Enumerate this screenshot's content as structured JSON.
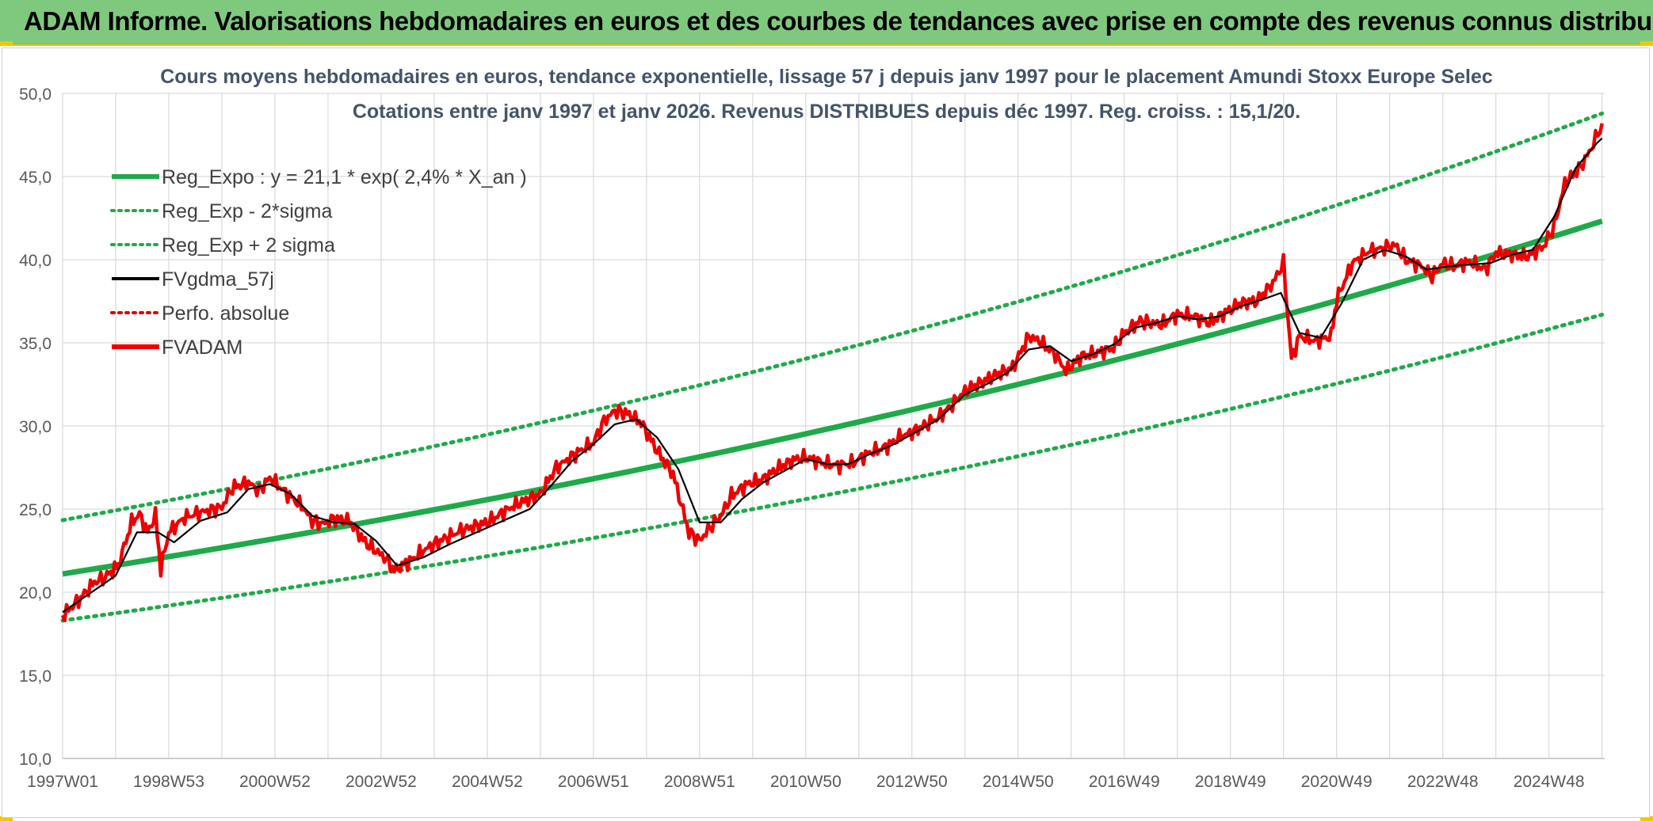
{
  "header": {
    "title": "ADAM Informe. Valorisations hebdomadaires en euros et des courbes de tendances avec prise en compte des revenus connus distribués"
  },
  "colors": {
    "header_bg": "#7fc97f",
    "regression": "#1faa4a",
    "sigma_band": "#1faa4a",
    "smoothed": "#000000",
    "perf_absolue": "#e00000",
    "fvadam": "#ee0000",
    "grid": "#d9d9d9"
  },
  "chart_data": {
    "type": "line",
    "title": "Cours moyens hebdomadaires en euros, tendance exponentielle, lissage 57 j depuis janv 1997 pour le placement Amundi Stoxx Europe Selec",
    "subtitle": "Cotations entre janv 1997 et janv 2026. Revenus DISTRIBUES depuis déc 1997. Reg. croiss. : 15,1/20.",
    "xlabel": "",
    "ylabel": "",
    "x_range": [
      1997.0,
      2026.05
    ],
    "ylim": [
      10,
      50
    ],
    "y_ticks": [
      "10,0",
      "15,0",
      "20,0",
      "25,0",
      "30,0",
      "35,0",
      "40,0",
      "45,0",
      "50,0"
    ],
    "y_tick_values": [
      10,
      15,
      20,
      25,
      30,
      35,
      40,
      45,
      50
    ],
    "x_tick_labels": [
      "1997W01",
      "1998W53",
      "2000W52",
      "2002W52",
      "2004W52",
      "2006W51",
      "2008W51",
      "2010W50",
      "2012W50",
      "2014W50",
      "2016W49",
      "2018W49",
      "2020W49",
      "2022W48",
      "2024W48"
    ],
    "x_tick_years": [
      1997.0,
      1999.0,
      2001.0,
      2003.0,
      2005.0,
      2007.0,
      2009.0,
      2011.0,
      2013.0,
      2015.0,
      2017.0,
      2019.0,
      2021.0,
      2023.0,
      2025.0
    ],
    "legend": [
      {
        "key": "reg",
        "label": "Reg_Expo : y = 21,1 * exp( 2,4% *  X_an )",
        "style": "solid-thick",
        "color": "#1faa4a"
      },
      {
        "key": "lower",
        "label": "Reg_Exp - 2*sigma",
        "style": "dotted",
        "color": "#1faa4a"
      },
      {
        "key": "upper",
        "label": "Reg_Exp + 2 sigma",
        "style": "dotted",
        "color": "#1faa4a"
      },
      {
        "key": "smooth",
        "label": "FVgdma_57j",
        "style": "solid",
        "color": "#000000"
      },
      {
        "key": "perf",
        "label": "Perfo. absolue",
        "style": "dotted",
        "color": "#e00000"
      },
      {
        "key": "fvadam",
        "label": "FVADAM",
        "style": "solid-thick",
        "color": "#ee0000"
      }
    ],
    "regression": {
      "a": 21.1,
      "growth": 0.024,
      "lower_factor": 0.867,
      "upper_factor": 1.153
    },
    "series": [
      {
        "name": "FVADAM",
        "x": [
          1997.0,
          1997.3,
          1997.6,
          1997.8,
          1998.05,
          1998.3,
          1998.45,
          1998.6,
          1998.75,
          1998.85,
          1999.0,
          1999.3,
          1999.6,
          2000.0,
          2000.2,
          2000.5,
          2000.7,
          2000.9,
          2001.2,
          2001.5,
          2001.7,
          2001.9,
          2002.1,
          2002.4,
          2002.7,
          2003.1,
          2003.25,
          2003.5,
          2003.8,
          2004.0,
          2004.5,
          2005.0,
          2005.5,
          2006.0,
          2006.3,
          2006.7,
          2007.0,
          2007.2,
          2007.4,
          2007.6,
          2007.9,
          2008.2,
          2008.5,
          2008.8,
          2009.0,
          2009.2,
          2009.4,
          2009.6,
          2009.9,
          2010.2,
          2010.5,
          2010.8,
          2011.0,
          2011.3,
          2011.6,
          2011.9,
          2012.2,
          2012.5,
          2012.8,
          2013.0,
          2013.5,
          2013.8,
          2014.0,
          2014.3,
          2014.6,
          2014.9,
          2015.2,
          2015.4,
          2015.7,
          2015.9,
          2016.2,
          2016.5,
          2016.8,
          2017.0,
          2017.3,
          2017.7,
          2018.0,
          2018.3,
          2018.6,
          2018.9,
          2019.2,
          2019.5,
          2019.8,
          2020.0,
          2020.15,
          2020.3,
          2020.6,
          2020.9,
          2021.0,
          2021.3,
          2021.6,
          2021.9,
          2022.1,
          2022.3,
          2022.6,
          2022.8,
          2023.0,
          2023.2,
          2023.5,
          2023.8,
          2024.0,
          2024.3,
          2024.6,
          2024.9,
          2025.1,
          2025.3,
          2025.6,
          2025.8,
          2026.0
        ],
        "values": [
          18.6,
          19.5,
          20.6,
          20.9,
          21.6,
          24.2,
          24.7,
          23.6,
          24.6,
          21.4,
          23.6,
          24.5,
          24.8,
          25.1,
          26.3,
          26.6,
          26.1,
          26.9,
          26.0,
          25.2,
          24.3,
          24.1,
          24.4,
          24.3,
          23.0,
          22.0,
          21.3,
          21.8,
          22.5,
          22.9,
          23.7,
          24.2,
          25.2,
          25.9,
          27.5,
          28.4,
          29.0,
          30.3,
          30.9,
          30.8,
          30.2,
          28.5,
          27.1,
          23.6,
          23.1,
          23.9,
          24.6,
          25.8,
          26.5,
          26.8,
          27.5,
          28.0,
          28.1,
          27.8,
          27.6,
          27.8,
          28.4,
          28.7,
          29.4,
          29.6,
          30.5,
          31.4,
          32.1,
          32.6,
          33.1,
          33.5,
          35.4,
          35.1,
          34.3,
          33.3,
          34.2,
          34.4,
          34.7,
          35.6,
          36.3,
          36.1,
          36.7,
          36.6,
          36.2,
          36.8,
          37.4,
          37.5,
          38.6,
          39.8,
          34.0,
          35.4,
          35.1,
          35.4,
          37.6,
          39.8,
          40.5,
          40.7,
          40.9,
          40.0,
          39.6,
          39.0,
          39.8,
          39.6,
          39.9,
          39.4,
          40.4,
          40.3,
          40.2,
          40.8,
          42.0,
          44.6,
          45.6,
          46.7,
          48.2
        ]
      },
      {
        "name": "FVgdma_57j",
        "x": [
          1997.0,
          1997.5,
          1998.0,
          1998.4,
          1998.8,
          1999.1,
          1999.6,
          2000.1,
          2000.5,
          2000.9,
          2001.3,
          2001.7,
          2002.1,
          2002.5,
          2002.9,
          2003.3,
          2003.8,
          2004.3,
          2004.8,
          2005.3,
          2005.8,
          2006.2,
          2006.6,
          2007.0,
          2007.4,
          2007.8,
          2008.2,
          2008.6,
          2009.0,
          2009.4,
          2009.8,
          2010.2,
          2010.6,
          2011.0,
          2011.4,
          2011.8,
          2012.2,
          2012.6,
          2013.0,
          2013.5,
          2014.0,
          2014.4,
          2014.8,
          2015.2,
          2015.6,
          2016.0,
          2016.4,
          2016.8,
          2017.2,
          2017.6,
          2018.0,
          2018.4,
          2018.8,
          2019.2,
          2019.6,
          2019.95,
          2020.3,
          2020.7,
          2021.1,
          2021.5,
          2021.9,
          2022.3,
          2022.7,
          2023.1,
          2023.5,
          2023.9,
          2024.3,
          2024.7,
          2025.1,
          2025.5,
          2025.9,
          2026.0
        ],
        "values": [
          18.8,
          19.9,
          21.0,
          23.6,
          23.6,
          23.0,
          24.3,
          24.8,
          26.2,
          26.5,
          25.9,
          24.6,
          24.2,
          24.1,
          23.1,
          21.6,
          22.1,
          22.9,
          23.6,
          24.3,
          25.0,
          26.4,
          27.9,
          28.9,
          30.1,
          30.4,
          29.3,
          27.4,
          24.2,
          24.2,
          25.6,
          26.6,
          27.3,
          28.0,
          27.7,
          27.7,
          28.3,
          28.8,
          29.5,
          30.4,
          31.9,
          32.5,
          33.2,
          34.6,
          34.8,
          33.9,
          34.3,
          34.9,
          35.9,
          36.2,
          36.6,
          36.4,
          36.6,
          37.2,
          37.6,
          38.0,
          35.6,
          35.3,
          37.4,
          40.0,
          40.6,
          40.2,
          39.4,
          39.6,
          39.7,
          39.8,
          40.3,
          40.6,
          42.6,
          45.5,
          47.0,
          47.3
        ]
      }
    ]
  }
}
